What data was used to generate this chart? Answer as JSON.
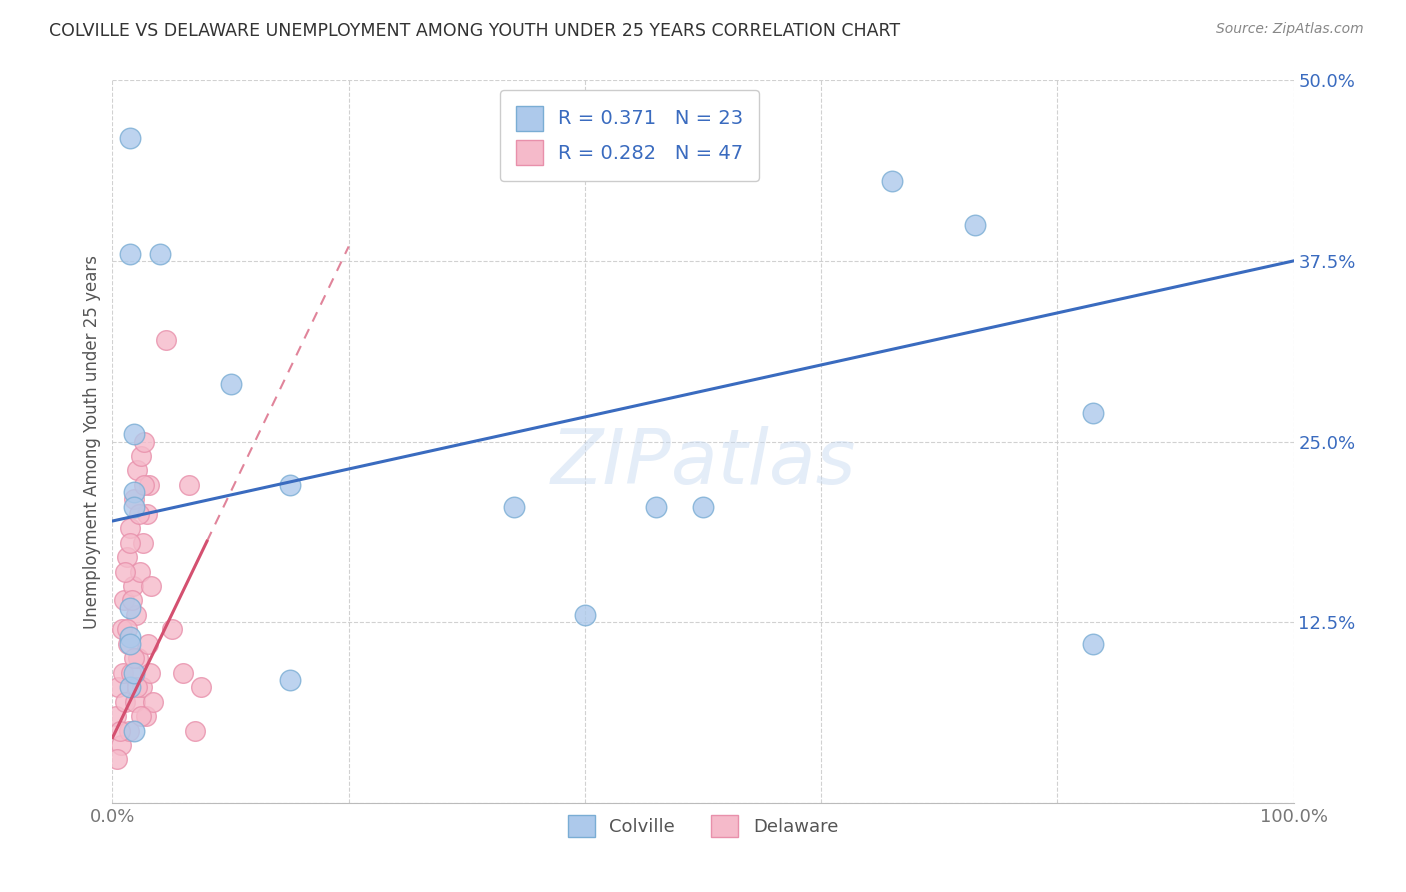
{
  "title": "COLVILLE VS DELAWARE UNEMPLOYMENT AMONG YOUTH UNDER 25 YEARS CORRELATION CHART",
  "source": "Source: ZipAtlas.com",
  "ylabel": "Unemployment Among Youth under 25 years",
  "xlim": [
    0,
    100
  ],
  "ylim": [
    0,
    50
  ],
  "yticks": [
    0,
    12.5,
    25.0,
    37.5,
    50.0
  ],
  "xticks": [
    0,
    20,
    40,
    60,
    80,
    100
  ],
  "colville_color": "#adc9eb",
  "delaware_color": "#f5baca",
  "colville_edge": "#7aadd4",
  "delaware_edge": "#e890ab",
  "trend_blue": "#3a6bbf",
  "trend_pink": "#d45070",
  "legend_color": "#3a6bbf",
  "colville_R": 0.371,
  "colville_N": 23,
  "delaware_R": 0.282,
  "delaware_N": 47,
  "blue_trend": [
    0,
    19.5,
    100,
    37.5
  ],
  "pink_solid_end_x": 8,
  "pink_trend_slope": 1.7,
  "pink_trend_intercept": 4.5,
  "watermark": "ZIPatlas",
  "bg_color": "#ffffff",
  "grid_color": "#cccccc",
  "colville_x": [
    1.5,
    1.5,
    4,
    10,
    15,
    1.8,
    1.8,
    1.8,
    46,
    50,
    1.5,
    34,
    1.5,
    40,
    66,
    73,
    83,
    83,
    1.5,
    1.5,
    15,
    1.8,
    1.8
  ],
  "colville_y": [
    46,
    38,
    38,
    29,
    22,
    25.5,
    21.5,
    20.5,
    20.5,
    20.5,
    13.5,
    20.5,
    11.5,
    13,
    43,
    40,
    27,
    11,
    11,
    8,
    8.5,
    9,
    5
  ],
  "delaware_x": [
    0.3,
    0.5,
    0.7,
    0.8,
    0.9,
    1.0,
    1.1,
    1.2,
    1.3,
    1.4,
    1.5,
    1.6,
    1.7,
    1.8,
    1.9,
    2.0,
    2.1,
    2.2,
    2.3,
    2.4,
    2.5,
    2.6,
    2.7,
    2.8,
    2.9,
    3.0,
    3.1,
    3.2,
    3.3,
    3.4,
    0.4,
    0.6,
    1.05,
    1.25,
    1.45,
    1.65,
    1.85,
    2.05,
    2.25,
    2.45,
    2.65,
    4.5,
    5.0,
    6.0,
    6.5,
    7.0,
    7.5
  ],
  "delaware_y": [
    6,
    8,
    4,
    12,
    9,
    14,
    7,
    17,
    11,
    5,
    19,
    9,
    15,
    21,
    7,
    13,
    23,
    10,
    16,
    24,
    8,
    18,
    25,
    6,
    20,
    11,
    22,
    9,
    15,
    7,
    3,
    5,
    16,
    12,
    18,
    14,
    10,
    8,
    20,
    6,
    22,
    32,
    12,
    9,
    22,
    5,
    8
  ]
}
